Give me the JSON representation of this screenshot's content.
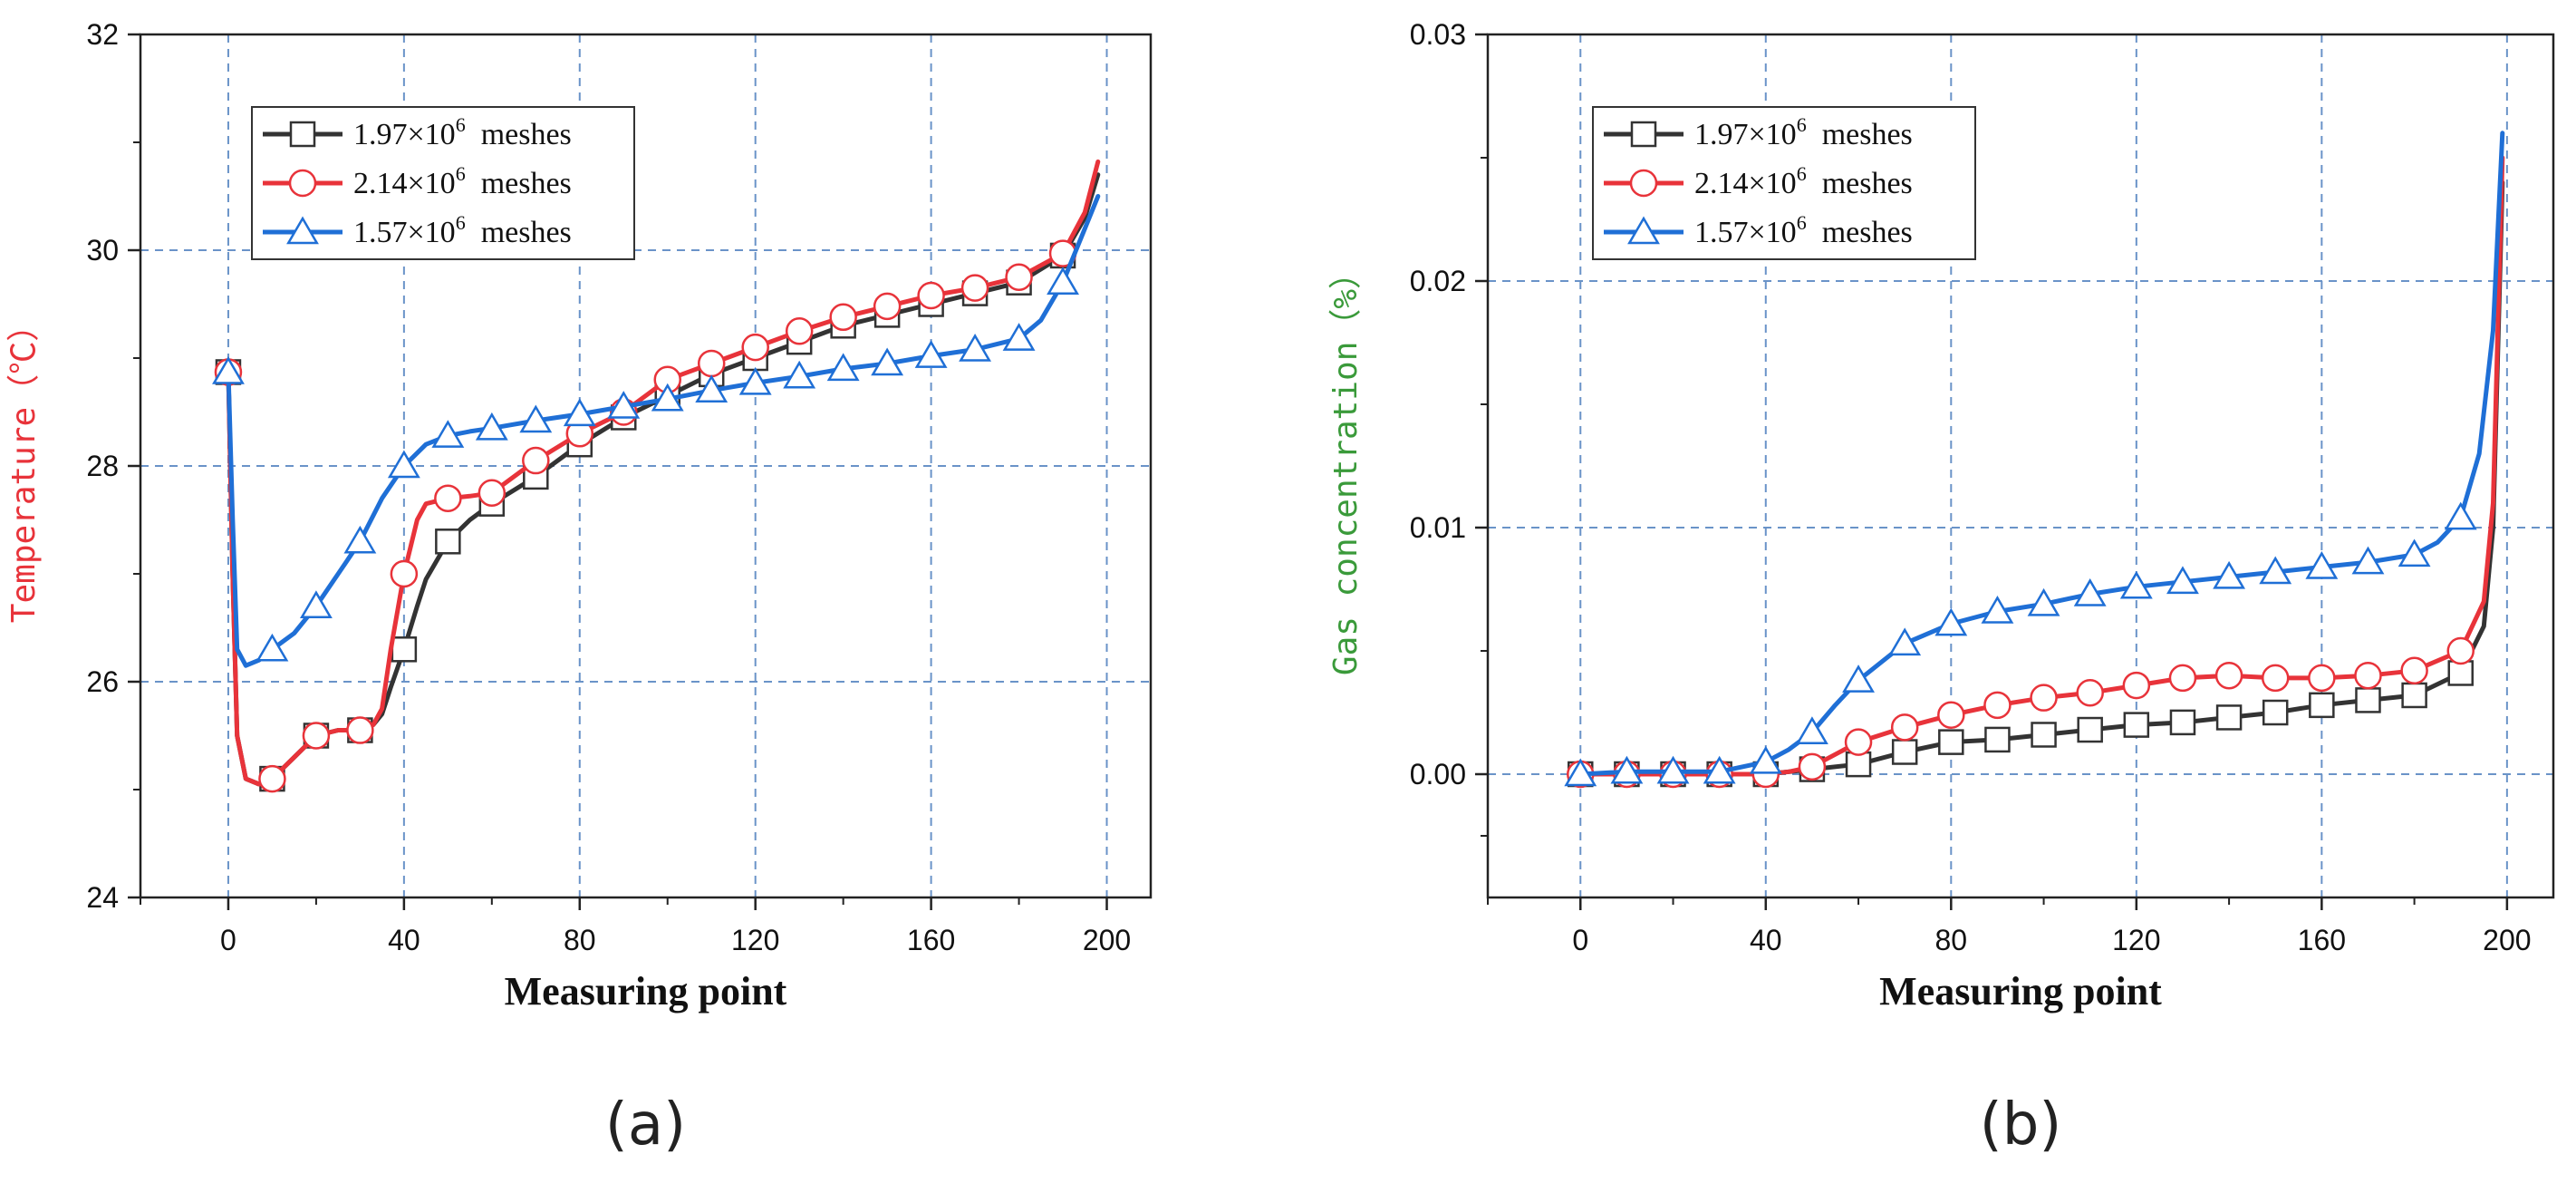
{
  "chart_data": [
    {
      "type": "line",
      "panel_label": "(a)",
      "xlabel": "Measuring point",
      "ylabel": "Temperature（℃）",
      "ylabel_color": "#e8333a",
      "xlim": [
        -20,
        210
      ],
      "ylim": [
        24,
        32
      ],
      "xticks": [
        0,
        40,
        80,
        120,
        160,
        200
      ],
      "xtick_labels": [
        "0",
        "40",
        "80",
        "120",
        "160",
        "200"
      ],
      "yticks": [
        24,
        26,
        28,
        30,
        32
      ],
      "ytick_labels": [
        "24",
        "26",
        "28",
        "30",
        "32"
      ],
      "grid": true,
      "legend_position": "top-left",
      "series": [
        {
          "name": "1.97×10",
          "name_sup": "6",
          "name_suffix": "meshes",
          "color": "#333333",
          "marker": "square",
          "x": [
            0,
            10,
            20,
            30,
            40,
            50,
            60,
            70,
            80,
            90,
            100,
            110,
            120,
            130,
            140,
            150,
            160,
            170,
            180,
            190
          ],
          "values": [
            28.87,
            25.1,
            25.5,
            25.55,
            26.3,
            27.3,
            27.65,
            27.9,
            28.2,
            28.45,
            28.65,
            28.85,
            29.0,
            29.15,
            29.3,
            29.4,
            29.5,
            29.6,
            29.7,
            29.95
          ],
          "curve_x": [
            0,
            1,
            2,
            4,
            7,
            10,
            15,
            20,
            25,
            30,
            33,
            35,
            37,
            40,
            43,
            45,
            50,
            55,
            60,
            70,
            80,
            90,
            100,
            110,
            120,
            130,
            140,
            150,
            160,
            170,
            180,
            190,
            195,
            198
          ],
          "curve_values": [
            28.87,
            27.0,
            25.5,
            25.1,
            25.05,
            25.1,
            25.3,
            25.5,
            25.55,
            25.55,
            25.6,
            25.7,
            25.95,
            26.3,
            26.7,
            26.95,
            27.3,
            27.5,
            27.65,
            27.9,
            28.2,
            28.45,
            28.65,
            28.85,
            29.0,
            29.15,
            29.3,
            29.4,
            29.5,
            29.6,
            29.7,
            29.95,
            30.3,
            30.7
          ]
        },
        {
          "name": "2.14×10",
          "name_sup": "6",
          "name_suffix": "meshes",
          "color": "#e8333a",
          "marker": "circle",
          "x": [
            0,
            10,
            20,
            30,
            40,
            50,
            60,
            70,
            80,
            90,
            100,
            110,
            120,
            130,
            140,
            150,
            160,
            170,
            180,
            190
          ],
          "values": [
            28.87,
            25.1,
            25.5,
            25.55,
            27.0,
            27.7,
            27.75,
            28.05,
            28.3,
            28.5,
            28.8,
            28.95,
            29.1,
            29.25,
            29.38,
            29.48,
            29.58,
            29.65,
            29.75,
            29.97
          ],
          "curve_x": [
            0,
            1,
            2,
            4,
            7,
            10,
            15,
            20,
            25,
            30,
            33,
            35,
            37,
            40,
            43,
            45,
            50,
            55,
            60,
            70,
            80,
            90,
            100,
            110,
            120,
            130,
            140,
            150,
            160,
            170,
            180,
            190,
            195,
            198
          ],
          "curve_values": [
            28.87,
            27.0,
            25.5,
            25.1,
            25.05,
            25.1,
            25.3,
            25.5,
            25.55,
            25.55,
            25.6,
            25.75,
            26.3,
            27.0,
            27.5,
            27.65,
            27.7,
            27.72,
            27.75,
            28.05,
            28.3,
            28.5,
            28.8,
            28.95,
            29.1,
            29.25,
            29.38,
            29.48,
            29.58,
            29.65,
            29.75,
            29.97,
            30.35,
            30.82
          ]
        },
        {
          "name": "1.57×10",
          "name_sup": "6",
          "name_suffix": "meshes",
          "color": "#1f6fd6",
          "marker": "triangle",
          "x": [
            0,
            10,
            20,
            30,
            40,
            50,
            60,
            70,
            80,
            90,
            100,
            110,
            120,
            130,
            140,
            150,
            160,
            170,
            180,
            190
          ],
          "values": [
            28.87,
            26.3,
            26.7,
            27.3,
            28.0,
            28.28,
            28.35,
            28.42,
            28.48,
            28.55,
            28.62,
            28.7,
            28.77,
            28.83,
            28.9,
            28.95,
            29.02,
            29.08,
            29.18,
            29.7
          ],
          "curve_x": [
            0,
            1,
            2,
            4,
            7,
            10,
            15,
            20,
            25,
            30,
            35,
            40,
            45,
            50,
            55,
            60,
            70,
            80,
            90,
            100,
            110,
            120,
            130,
            140,
            150,
            160,
            170,
            180,
            185,
            190,
            195,
            198
          ],
          "curve_values": [
            28.87,
            27.5,
            26.3,
            26.15,
            26.2,
            26.3,
            26.45,
            26.7,
            27.0,
            27.3,
            27.7,
            28.0,
            28.2,
            28.28,
            28.32,
            28.35,
            28.42,
            28.48,
            28.55,
            28.62,
            28.7,
            28.77,
            28.83,
            28.9,
            28.95,
            29.02,
            29.08,
            29.18,
            29.35,
            29.7,
            30.2,
            30.5
          ]
        }
      ]
    },
    {
      "type": "line",
      "panel_label": "(b)",
      "xlabel": "Measuring point",
      "ylabel": "Gas concentration（%）",
      "ylabel_color": "#3a9a3a",
      "xlim": [
        -20,
        210
      ],
      "ylim": [
        -0.005,
        0.03
      ],
      "xticks": [
        0,
        40,
        80,
        120,
        160,
        200
      ],
      "xtick_labels": [
        "0",
        "40",
        "80",
        "120",
        "160",
        "200"
      ],
      "yticks": [
        0.0,
        0.01,
        0.02,
        0.03
      ],
      "ytick_labels": [
        "0.00",
        "0.01",
        "0.02",
        "0.03"
      ],
      "grid": true,
      "legend_position": "top-left",
      "series": [
        {
          "name": "1.97×10",
          "name_sup": "6",
          "name_suffix": "meshes",
          "color": "#333333",
          "marker": "square",
          "x": [
            0,
            10,
            20,
            30,
            40,
            50,
            60,
            70,
            80,
            90,
            100,
            110,
            120,
            130,
            140,
            150,
            160,
            170,
            180,
            190
          ],
          "values": [
            0.0,
            0.0,
            0.0,
            0.0,
            0.0,
            0.0002,
            0.0004,
            0.0009,
            0.0013,
            0.0014,
            0.0016,
            0.0018,
            0.002,
            0.0021,
            0.0023,
            0.0025,
            0.0028,
            0.003,
            0.0032,
            0.0041
          ],
          "curve_x": [
            0,
            10,
            20,
            30,
            40,
            50,
            60,
            70,
            80,
            90,
            100,
            110,
            120,
            130,
            140,
            150,
            160,
            170,
            180,
            190,
            195,
            197,
            199
          ],
          "curve_values": [
            0.0,
            0.0,
            0.0,
            0.0,
            0.0,
            0.0002,
            0.0004,
            0.0009,
            0.0013,
            0.0014,
            0.0016,
            0.0018,
            0.002,
            0.0021,
            0.0023,
            0.0025,
            0.0028,
            0.003,
            0.0032,
            0.0041,
            0.006,
            0.01,
            0.024
          ]
        },
        {
          "name": "2.14×10",
          "name_sup": "6",
          "name_suffix": "meshes",
          "color": "#e8333a",
          "marker": "circle",
          "x": [
            0,
            10,
            20,
            30,
            40,
            50,
            60,
            70,
            80,
            90,
            100,
            110,
            120,
            130,
            140,
            150,
            160,
            170,
            180,
            190
          ],
          "values": [
            0.0,
            0.0,
            0.0,
            0.0,
            0.0,
            0.0003,
            0.0013,
            0.0019,
            0.0024,
            0.0028,
            0.0031,
            0.0033,
            0.0036,
            0.0039,
            0.004,
            0.0039,
            0.0039,
            0.004,
            0.0042,
            0.005
          ],
          "curve_x": [
            0,
            10,
            20,
            30,
            40,
            45,
            50,
            55,
            60,
            70,
            80,
            90,
            100,
            110,
            120,
            130,
            140,
            150,
            160,
            170,
            180,
            190,
            195,
            197,
            199
          ],
          "curve_values": [
            0.0,
            0.0,
            0.0,
            0.0,
            0.0,
            0.0001,
            0.0003,
            0.0008,
            0.0013,
            0.0019,
            0.0024,
            0.0028,
            0.0031,
            0.0033,
            0.0036,
            0.0039,
            0.004,
            0.0039,
            0.0039,
            0.004,
            0.0042,
            0.005,
            0.007,
            0.011,
            0.025
          ]
        },
        {
          "name": "1.57×10",
          "name_sup": "6",
          "name_suffix": "meshes",
          "color": "#1f6fd6",
          "marker": "triangle",
          "x": [
            0,
            10,
            20,
            30,
            40,
            50,
            60,
            70,
            80,
            90,
            100,
            110,
            120,
            130,
            140,
            150,
            160,
            170,
            180,
            190
          ],
          "values": [
            0.0,
            0.0001,
            0.0001,
            0.0001,
            0.0005,
            0.0017,
            0.0038,
            0.0053,
            0.0061,
            0.0066,
            0.0069,
            0.0073,
            0.0076,
            0.0078,
            0.008,
            0.0082,
            0.0084,
            0.0086,
            0.0089,
            0.0104
          ],
          "curve_x": [
            0,
            10,
            20,
            30,
            40,
            45,
            50,
            55,
            60,
            70,
            80,
            90,
            100,
            110,
            120,
            130,
            140,
            150,
            160,
            170,
            180,
            185,
            190,
            194,
            197,
            199
          ],
          "curve_values": [
            0.0,
            0.0001,
            0.0001,
            0.0001,
            0.0005,
            0.001,
            0.0017,
            0.0028,
            0.0038,
            0.0053,
            0.0061,
            0.0066,
            0.0069,
            0.0073,
            0.0076,
            0.0078,
            0.008,
            0.0082,
            0.0084,
            0.0086,
            0.0089,
            0.0094,
            0.0104,
            0.013,
            0.018,
            0.026
          ]
        }
      ]
    }
  ]
}
